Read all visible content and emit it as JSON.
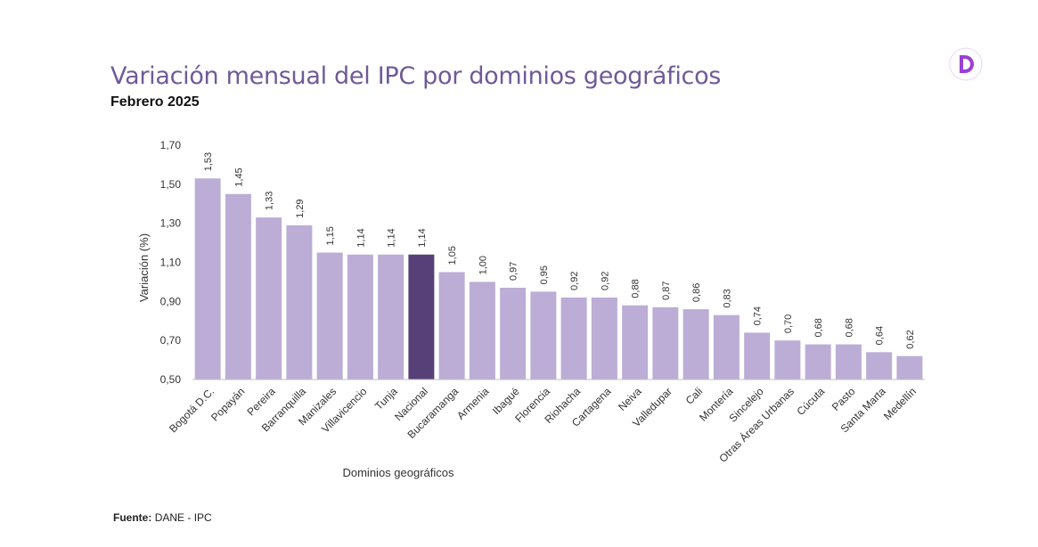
{
  "title": "Variación mensual del IPC por dominios geográficos",
  "subtitle": "Febrero 2025",
  "logo": {
    "icon": "dane-d-logo-icon",
    "color": "#9b3fd6"
  },
  "source": {
    "label": "Fuente:",
    "text": "DANE - IPC"
  },
  "colors": {
    "bar": "#bcadd6",
    "highlight": "#574078",
    "axis": "#bfbfbf"
  },
  "chart_data": {
    "type": "bar",
    "title": "Variación mensual del IPC por dominios geográficos",
    "subtitle": "Febrero 2025",
    "xlabel": "Dominios geográficos",
    "ylabel": "Variación (%)",
    "ylim": [
      0.5,
      1.7
    ],
    "yticks": [
      "0,50",
      "0,70",
      "0,90",
      "1,10",
      "1,30",
      "1,50",
      "1,70"
    ],
    "ytick_values": [
      0.5,
      0.7,
      0.9,
      1.1,
      1.3,
      1.5,
      1.7
    ],
    "categories": [
      "Bogotá D.C.",
      "Popayán",
      "Pereira",
      "Barranquilla",
      "Manizales",
      "Villavicencio",
      "Tunja",
      "Nacional",
      "Bucaramanga",
      "Armenia",
      "Ibagué",
      "Florencia",
      "Riohacha",
      "Cartagena",
      "Neiva",
      "Valledupar",
      "Cali",
      "Montería",
      "Sincelejo",
      "Otras Áreas Urbanas",
      "Cúcuta",
      "Pasto",
      "Santa Marta",
      "Medellín"
    ],
    "values": [
      1.53,
      1.45,
      1.33,
      1.29,
      1.15,
      1.14,
      1.14,
      1.14,
      1.05,
      1.0,
      0.97,
      0.95,
      0.92,
      0.92,
      0.88,
      0.87,
      0.86,
      0.83,
      0.74,
      0.7,
      0.68,
      0.68,
      0.64,
      0.62
    ],
    "labels": [
      "1,53",
      "1,45",
      "1,33",
      "1,29",
      "1,15",
      "1,14",
      "1,14",
      "1,14",
      "1,05",
      "1,00",
      "0,97",
      "0,95",
      "0,92",
      "0,92",
      "0,88",
      "0,87",
      "0,86",
      "0,83",
      "0,74",
      "0,70",
      "0,68",
      "0,68",
      "0,64",
      "0,62"
    ],
    "highlight": "Nacional",
    "grid": false
  }
}
